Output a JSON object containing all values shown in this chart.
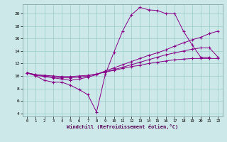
{
  "xlabel": "Windchill (Refroidissement éolien,°C)",
  "background_color": "#cce8e8",
  "grid_color": "#99cccc",
  "line_color": "#880088",
  "xlim": [
    -0.5,
    22.5
  ],
  "ylim": [
    3.5,
    21.5
  ],
  "xticks": [
    0,
    1,
    2,
    3,
    4,
    5,
    6,
    7,
    8,
    9,
    10,
    11,
    12,
    13,
    14,
    15,
    16,
    17,
    18,
    19,
    20,
    21,
    22
  ],
  "yticks": [
    4,
    6,
    8,
    10,
    12,
    14,
    16,
    18,
    20
  ],
  "line1_x": [
    0,
    1,
    2,
    3,
    4,
    5,
    6,
    7,
    8,
    9,
    10,
    11,
    12,
    13,
    14,
    15,
    16,
    17,
    18,
    19,
    20,
    21
  ],
  "line1_y": [
    10.5,
    10.0,
    9.3,
    9.0,
    9.0,
    8.5,
    7.8,
    7.0,
    4.2,
    10.2,
    13.8,
    17.2,
    19.8,
    21.0,
    20.6,
    20.5,
    20.0,
    20.0,
    17.2,
    15.0,
    13.0,
    13.0
  ],
  "line2_x": [
    0,
    1,
    2,
    3,
    4,
    5,
    6,
    7,
    8,
    9,
    10,
    11,
    12,
    13,
    14,
    15,
    16,
    17,
    18,
    19,
    20,
    21,
    22
  ],
  "line2_y": [
    10.5,
    10.1,
    9.9,
    9.7,
    9.5,
    9.3,
    9.5,
    9.8,
    10.2,
    10.8,
    11.3,
    11.8,
    12.3,
    12.8,
    13.3,
    13.7,
    14.2,
    14.8,
    15.3,
    15.8,
    16.2,
    16.8,
    17.2
  ],
  "line3_x": [
    0,
    1,
    2,
    3,
    4,
    5,
    6,
    7,
    8,
    9,
    10,
    11,
    12,
    13,
    14,
    15,
    16,
    17,
    18,
    19,
    20,
    21,
    22
  ],
  "line3_y": [
    10.5,
    10.2,
    10.0,
    9.8,
    9.7,
    9.7,
    9.8,
    10.0,
    10.3,
    10.7,
    11.0,
    11.4,
    11.8,
    12.2,
    12.6,
    13.0,
    13.4,
    13.7,
    14.0,
    14.3,
    14.5,
    14.5,
    13.0
  ],
  "line4_x": [
    0,
    1,
    2,
    3,
    4,
    5,
    6,
    7,
    8,
    9,
    10,
    11,
    12,
    13,
    14,
    15,
    16,
    17,
    18,
    19,
    20,
    21,
    22
  ],
  "line4_y": [
    10.5,
    10.2,
    10.1,
    10.0,
    9.9,
    9.9,
    10.0,
    10.1,
    10.3,
    10.6,
    10.9,
    11.2,
    11.5,
    11.7,
    12.0,
    12.2,
    12.4,
    12.6,
    12.7,
    12.8,
    12.8,
    12.8,
    12.8
  ]
}
